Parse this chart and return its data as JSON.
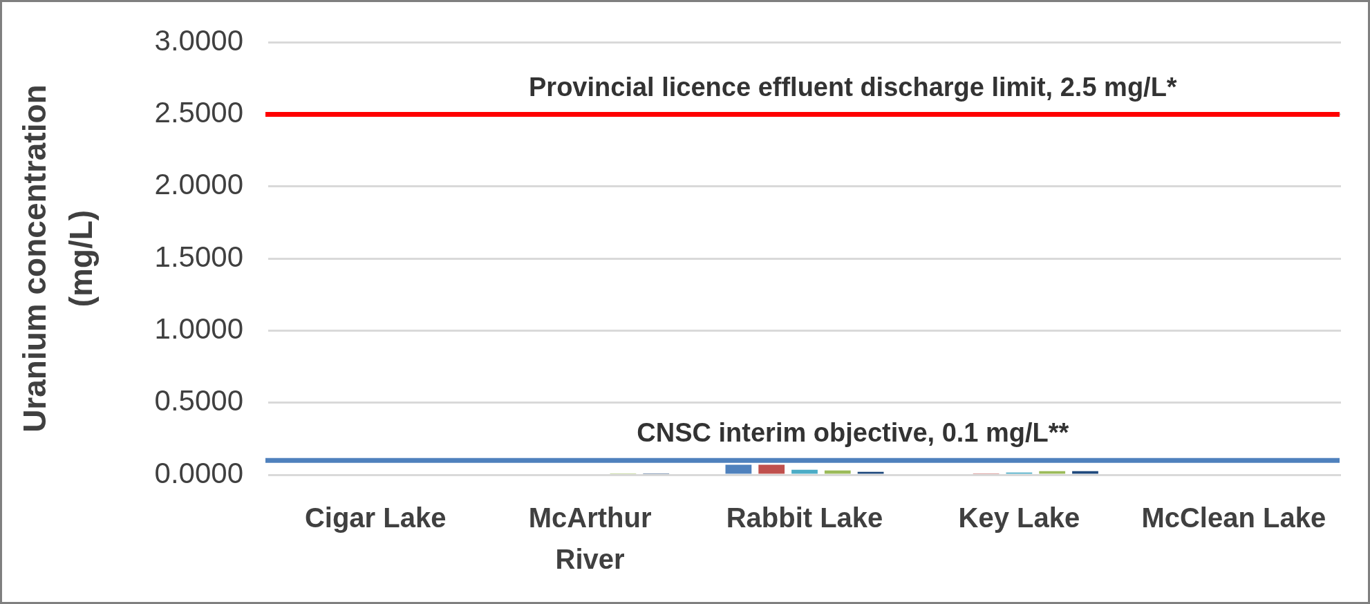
{
  "chart_data": {
    "type": "bar",
    "ylabel": "Uranium concentration (mg/L)",
    "categories": [
      "Cigar Lake",
      "McArthur River",
      "Rabbit Lake",
      "Key Lake",
      "McClean Lake"
    ],
    "series": [
      {
        "color": "#4f81bd",
        "values": [
          null,
          null,
          0.07,
          null,
          null
        ]
      },
      {
        "color": "#c0504d",
        "values": [
          null,
          null,
          0.07,
          0.01,
          null
        ]
      },
      {
        "color": "#4bacc6",
        "values": [
          null,
          null,
          0.035,
          0.015,
          null
        ]
      },
      {
        "color": "#9bbb59",
        "values": [
          null,
          0.01,
          0.03,
          0.025,
          null
        ]
      },
      {
        "color": "#1f497d",
        "values": [
          null,
          0.01,
          0.02,
          0.025,
          null
        ]
      }
    ],
    "ylim": [
      0,
      3
    ],
    "yticks": [
      {
        "value": 0,
        "label": "0.0000"
      },
      {
        "value": 0.5,
        "label": "0.5000"
      },
      {
        "value": 1,
        "label": "1.0000"
      },
      {
        "value": 1.5,
        "label": "1.5000"
      },
      {
        "value": 2,
        "label": "2.0000"
      },
      {
        "value": 2.5,
        "label": "2.5000"
      },
      {
        "value": 3,
        "label": "3.0000"
      }
    ],
    "grid": "y",
    "ref_lines": [
      {
        "axis": "y",
        "value": 2.5,
        "label": "Provincial licence effluent discharge limit, 2.5 mg/L*",
        "color": "#ff0000"
      },
      {
        "axis": "y",
        "value": 0.1,
        "label": "CNSC interim objective, 0.1 mg/L**",
        "color": "#4f81bd"
      }
    ]
  }
}
